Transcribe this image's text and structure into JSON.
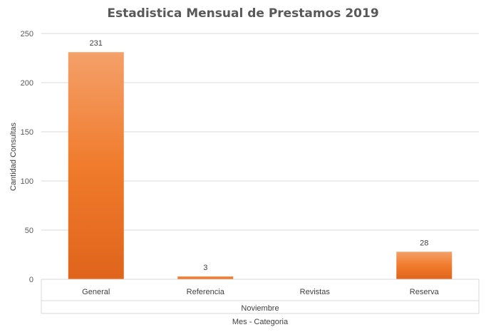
{
  "chart_data": {
    "type": "bar",
    "title": "Estadistica Mensual de Prestamos 2019",
    "ylabel": "Cantidad Consultas",
    "xlabel": "Mes - Categoria",
    "group_label": "Noviembre",
    "categories": [
      "General",
      "Referencia",
      "Revistas",
      "Reserva"
    ],
    "values": [
      231,
      3,
      null,
      28
    ],
    "data_labels": [
      "231",
      "3",
      "",
      "28"
    ],
    "ylim": [
      0,
      250
    ],
    "yticks": [
      0,
      50,
      100,
      150,
      200,
      250
    ],
    "grid": true,
    "legend": "none",
    "bar_color": "#f07b2c",
    "bar_color_light": "#f4a06a",
    "bar_color_dark": "#e0641c"
  }
}
